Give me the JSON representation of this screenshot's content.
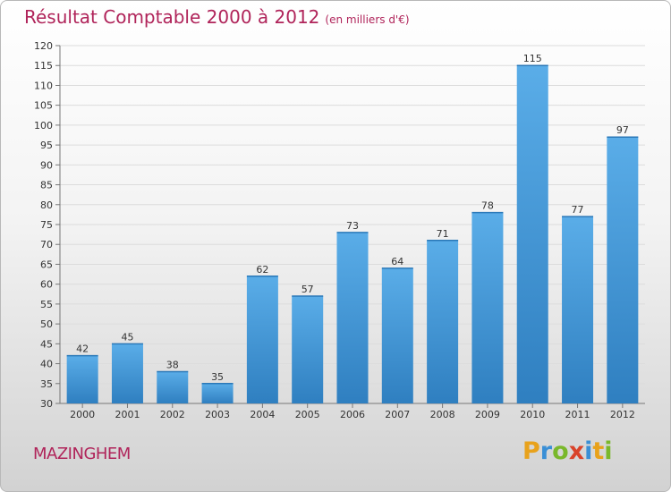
{
  "header": {
    "title": "Résultat Comptable 2000 à 2012",
    "subtitle": "(en milliers d'€)"
  },
  "footer": {
    "commune": "MAZINGHEM",
    "logo_letters": [
      {
        "ch": "P",
        "color": "#e8a21c"
      },
      {
        "ch": "r",
        "color": "#3a8fd6"
      },
      {
        "ch": "o",
        "color": "#7ab82b"
      },
      {
        "ch": "x",
        "color": "#d9432a"
      },
      {
        "ch": "i",
        "color": "#3a8fd6"
      },
      {
        "ch": "t",
        "color": "#e8a21c"
      },
      {
        "ch": "i",
        "color": "#7ab82b"
      }
    ]
  },
  "colors": {
    "bar_top": "#5aade8",
    "bar_bottom": "#2f7fc0",
    "accent": "#b0245a"
  },
  "chart_data": {
    "type": "bar",
    "title": "Résultat Comptable 2000 à 2012",
    "subtitle": "(en milliers d'€)",
    "xlabel": "",
    "ylabel": "",
    "categories": [
      "2000",
      "2001",
      "2002",
      "2003",
      "2004",
      "2005",
      "2006",
      "2007",
      "2008",
      "2009",
      "2010",
      "2011",
      "2012"
    ],
    "values": [
      42,
      45,
      38,
      35,
      62,
      57,
      73,
      64,
      71,
      78,
      115,
      77,
      97
    ],
    "ylim": [
      30,
      120
    ],
    "yticks": [
      30,
      35,
      40,
      45,
      50,
      55,
      60,
      65,
      70,
      75,
      80,
      85,
      90,
      95,
      100,
      105,
      110,
      115,
      120
    ],
    "grid": true,
    "legend": "none"
  }
}
